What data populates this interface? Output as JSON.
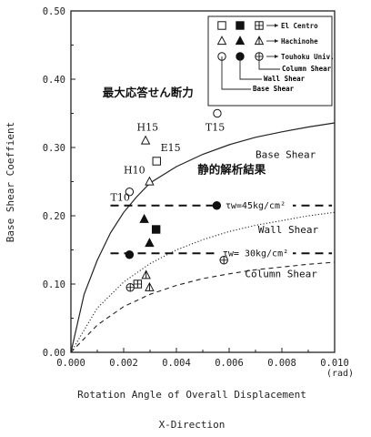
{
  "side_text": {
    "chars": [
      " ",
      " ",
      " ",
      " ",
      " ",
      " ",
      " ",
      " ",
      " ",
      " ",
      " ",
      " "
    ]
  },
  "chart_data": {
    "type": "scatter",
    "xlabel": "Rotation Angle of Overall Displacement",
    "ylabel": "Base Shear Coeffient",
    "footer": "X-Direction",
    "x_unit": "(rad)",
    "xlim": [
      0,
      0.01
    ],
    "ylim": [
      0,
      0.5
    ],
    "x_ticks": [
      "0.000",
      "0.002",
      "0.004",
      "0.006",
      "0.008",
      "0.010"
    ],
    "y_ticks": [
      "0.00",
      "0.10",
      "0.20",
      "0.30",
      "0.40",
      "0.50"
    ],
    "legend": {
      "rows": [
        {
          "marker": "square",
          "label": "El Centro"
        },
        {
          "marker": "triangle",
          "label": "Hachinohe"
        },
        {
          "marker": "circle",
          "label": "Touhoku Univ."
        }
      ],
      "columns": [
        "Column Shear",
        "Wall Shear",
        "Base Shear"
      ]
    },
    "curves": [
      {
        "name": "Base Shear",
        "style": "solid",
        "x": [
          0,
          0.0005,
          0.001,
          0.0015,
          0.002,
          0.0025,
          0.003,
          0.004,
          0.005,
          0.006,
          0.007,
          0.008,
          0.009,
          0.01
        ],
        "y": [
          0,
          0.085,
          0.135,
          0.175,
          0.205,
          0.228,
          0.248,
          0.272,
          0.29,
          0.304,
          0.315,
          0.323,
          0.33,
          0.336
        ]
      },
      {
        "name": "Wall Shear",
        "style": "dotted",
        "x": [
          0,
          0.001,
          0.002,
          0.003,
          0.004,
          0.005,
          0.006,
          0.007,
          0.008,
          0.009,
          0.01
        ],
        "y": [
          0,
          0.065,
          0.103,
          0.13,
          0.15,
          0.165,
          0.177,
          0.186,
          0.193,
          0.2,
          0.205
        ]
      },
      {
        "name": "Column Shear",
        "style": "dashed",
        "x": [
          0,
          0.001,
          0.002,
          0.003,
          0.004,
          0.005,
          0.006,
          0.007,
          0.008,
          0.009,
          0.01
        ],
        "y": [
          0,
          0.04,
          0.067,
          0.085,
          0.098,
          0.108,
          0.115,
          0.121,
          0.125,
          0.129,
          0.132
        ]
      }
    ],
    "reference_lines": [
      {
        "label": "τw=45kg/cm²",
        "y": 0.215,
        "x_start": 0.0015,
        "x_end": 0.0099
      },
      {
        "label": "τw= 30kg/cm²",
        "y": 0.145,
        "x_start": 0.0015,
        "x_end": 0.0099
      }
    ],
    "points": [
      {
        "marker": "square",
        "fill": "open",
        "x": 0.00325,
        "y": 0.28
      },
      {
        "marker": "square",
        "fill": "filled",
        "x": 0.00323,
        "y": 0.18
      },
      {
        "marker": "square",
        "fill": "half",
        "x": 0.00253,
        "y": 0.1
      },
      {
        "marker": "triangle",
        "fill": "open",
        "x": 0.00283,
        "y": 0.31
      },
      {
        "marker": "triangle",
        "fill": "open",
        "x": 0.00298,
        "y": 0.25
      },
      {
        "marker": "triangle",
        "fill": "filled",
        "x": 0.00278,
        "y": 0.195
      },
      {
        "marker": "triangle",
        "fill": "filled",
        "x": 0.00298,
        "y": 0.16
      },
      {
        "marker": "triangle",
        "fill": "half",
        "x": 0.00285,
        "y": 0.113
      },
      {
        "marker": "triangle",
        "fill": "half",
        "x": 0.00298,
        "y": 0.095
      },
      {
        "marker": "circle",
        "fill": "open",
        "x": 0.00555,
        "y": 0.35
      },
      {
        "marker": "circle",
        "fill": "open",
        "x": 0.00222,
        "y": 0.235
      },
      {
        "marker": "circle",
        "fill": "filled",
        "x": 0.00553,
        "y": 0.215
      },
      {
        "marker": "circle",
        "fill": "filled",
        "x": 0.00222,
        "y": 0.143
      },
      {
        "marker": "circle",
        "fill": "half",
        "x": 0.0058,
        "y": 0.135
      },
      {
        "marker": "circle",
        "fill": "half",
        "x": 0.00225,
        "y": 0.095
      }
    ],
    "annotations": [
      {
        "text": "最大応答せん断力",
        "x": 0.0012,
        "y": 0.375,
        "font": "jp"
      },
      {
        "text": "静的解析結果",
        "x": 0.0048,
        "y": 0.262,
        "font": "jp"
      },
      {
        "text": "Base Shear",
        "x": 0.007,
        "y": 0.285,
        "font": "mono"
      },
      {
        "text": "Wall Shear",
        "x": 0.0071,
        "y": 0.175,
        "font": "mono"
      },
      {
        "text": "Column Shear",
        "x": 0.0066,
        "y": 0.11,
        "font": "mono"
      },
      {
        "text": "H15",
        "x": 0.0025,
        "y": 0.325,
        "font": "serif"
      },
      {
        "text": "E15",
        "x": 0.0034,
        "y": 0.295,
        "font": "serif"
      },
      {
        "text": "T15",
        "x": 0.0051,
        "y": 0.325,
        "font": "serif"
      },
      {
        "text": "H10",
        "x": 0.002,
        "y": 0.262,
        "font": "serif"
      },
      {
        "text": "T10",
        "x": 0.0015,
        "y": 0.222,
        "font": "serif"
      }
    ]
  }
}
